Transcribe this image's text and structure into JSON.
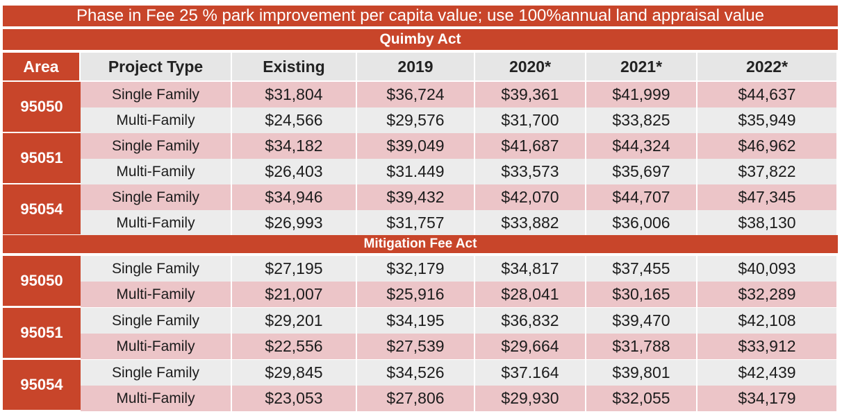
{
  "banner": "Phase in Fee 25 % park improvement per capita value; use 100%annual land appraisal value",
  "quimby": {
    "title": "Quimby Act",
    "headers": [
      "Area",
      "Project Type",
      "Existing",
      "2019",
      "2020*",
      "2021*",
      "2022*"
    ],
    "groups": [
      {
        "area": "95050",
        "rows": [
          {
            "type": "Single Family",
            "values": [
              "$31,804",
              "$36,724",
              "$39,361",
              "$41,999",
              "$44,637"
            ]
          },
          {
            "type": "Multi-Family",
            "values": [
              "$24,566",
              "$29,576",
              "$31,700",
              "$33,825",
              "$35,949"
            ]
          }
        ]
      },
      {
        "area": "95051",
        "rows": [
          {
            "type": "Single Family",
            "values": [
              "$34,182",
              "$39,049",
              "$41,687",
              "$44,324",
              "$46,962"
            ]
          },
          {
            "type": "Multi-Family",
            "values": [
              "$26,403",
              "$31.449",
              "$33,573",
              "$35,697",
              "$37,822"
            ]
          }
        ]
      },
      {
        "area": "95054",
        "rows": [
          {
            "type": "Single Family",
            "values": [
              "$34,946",
              "$39,432",
              "$42,070",
              "$44,707",
              "$47,345"
            ]
          },
          {
            "type": "Multi-Family",
            "values": [
              "$26,993",
              "$31,757",
              "$33,882",
              "$36,006",
              "$38,130"
            ]
          }
        ]
      }
    ]
  },
  "mitigation": {
    "title": "Mitigation Fee Act",
    "groups": [
      {
        "area": "95050",
        "rows": [
          {
            "type": "Single Family",
            "values": [
              "$27,195",
              "$32,179",
              "$34,817",
              "$37,455",
              "$40,093"
            ]
          },
          {
            "type": "Multi-Family",
            "values": [
              "$21,007",
              "$25,916",
              "$28,041",
              "$30,165",
              "$32,289"
            ]
          }
        ]
      },
      {
        "area": "95051",
        "rows": [
          {
            "type": "Single Family",
            "values": [
              "$29,201",
              "$34,195",
              "$36,832",
              "$39,470",
              "$42,108"
            ]
          },
          {
            "type": "Multi-Family",
            "values": [
              "$22,556",
              "$27,539",
              "$29,664",
              "$31,788",
              "$33,912"
            ]
          }
        ]
      },
      {
        "area": "95054",
        "rows": [
          {
            "type": "Single Family",
            "values": [
              "$29,845",
              "$34,526",
              "$37.164",
              "$39,801",
              "$42,439"
            ]
          },
          {
            "type": "Multi-Family",
            "values": [
              "$23,053",
              "$27,806",
              "$29,930",
              "$32,055",
              "$34,179"
            ]
          }
        ]
      }
    ]
  },
  "colors": {
    "accent": "#c8452a",
    "pink_row": "#ecc5c8",
    "grey_row": "#ececec"
  }
}
